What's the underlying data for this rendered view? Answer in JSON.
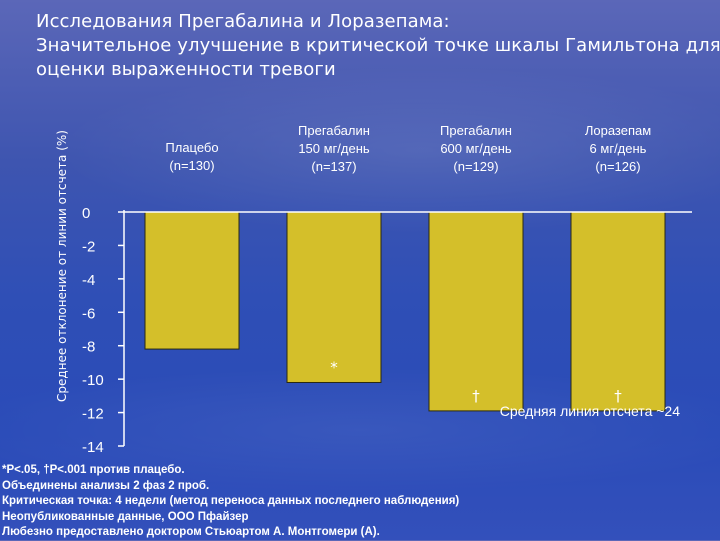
{
  "title_lines": [
    "Исследования Прегабалина и Лоразепама:",
    "Значительное улучшение в критической точке шкалы Гамильтона для",
    "оценки выраженности тревоги"
  ],
  "chart_data": {
    "type": "bar",
    "ylabel": "Среднее отклонение от линии отсчета (%)",
    "ylim": [
      -14,
      0
    ],
    "yticks": [
      0,
      -2,
      -4,
      -6,
      -8,
      -10,
      -12,
      -14
    ],
    "categories": [
      [
        "Плацебо",
        "(n=130)"
      ],
      [
        "Прегабалин",
        "150 мг/день",
        "(n=137)"
      ],
      [
        "Прегабалин",
        "600 мг/день",
        "(n=129)"
      ],
      [
        "Лоразепам",
        "6 мг/день",
        "(n=126)"
      ]
    ],
    "values": [
      -8.2,
      -10.2,
      -11.9,
      -11.9
    ],
    "significance": [
      "",
      "*",
      "†",
      "†"
    ],
    "annotation": "Средняя линия отсчета ~24",
    "bar_color": "#d4bf2a",
    "grid": false
  },
  "footnotes": [
    "*P<.05, †P<.001 против плацебо.",
    "Объединены анализы 2 фаз 2 проб.",
    "Критическая точка: 4 недели (метод переноса данных последнего наблюдения)",
    "Неопубликованные данные, ООО Пфайзер",
    "Любезно предоставлено доктором Стьюартом А. Монтгомери (А)."
  ]
}
